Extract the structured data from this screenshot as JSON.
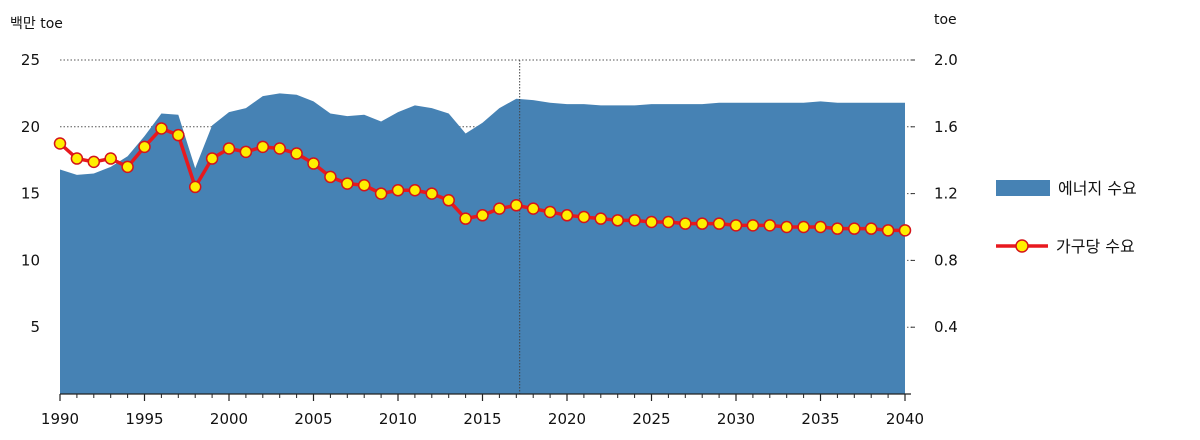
{
  "chart_data": {
    "type": "area+line",
    "title": "",
    "y_left_unit": "백만 toe",
    "y_right_unit": "toe",
    "x_ticks": [
      1990,
      1995,
      2000,
      2005,
      2010,
      2015,
      2020,
      2025,
      2030,
      2035,
      2040
    ],
    "y_left_ticks": [
      5,
      10,
      15,
      20,
      25
    ],
    "y_right_ticks": [
      "0.4",
      "0.8",
      "1.2",
      "1.6",
      "2.0"
    ],
    "x_range": [
      1990,
      2040
    ],
    "y_left_range": [
      0,
      25
    ],
    "y_right_range": [
      0,
      2.0
    ],
    "vertical_marker_year": 2017.2,
    "grid": "dotted horizontal",
    "legend_placement": "right",
    "colors": {
      "area": "#4682b4",
      "line": "#e8191e",
      "marker_fill": "#ffef00",
      "marker_stroke": "#d4141a",
      "grid": "#555555"
    },
    "series": [
      {
        "name": "에너지 수요",
        "type": "area",
        "axis": "left",
        "x": [
          1990,
          1991,
          1992,
          1993,
          1994,
          1995,
          1996,
          1997,
          1998,
          1999,
          2000,
          2001,
          2002,
          2003,
          2004,
          2005,
          2006,
          2007,
          2008,
          2009,
          2010,
          2011,
          2012,
          2013,
          2014,
          2015,
          2016,
          2017,
          2018,
          2019,
          2020,
          2021,
          2022,
          2023,
          2024,
          2025,
          2026,
          2027,
          2028,
          2029,
          2030,
          2031,
          2032,
          2033,
          2034,
          2035,
          2036,
          2037,
          2038,
          2039,
          2040
        ],
        "values": [
          16.8,
          16.4,
          16.5,
          17.0,
          17.8,
          19.3,
          21.0,
          20.9,
          16.9,
          20.1,
          21.1,
          21.4,
          22.3,
          22.5,
          22.4,
          21.9,
          21.0,
          20.8,
          20.9,
          20.4,
          21.1,
          21.6,
          21.4,
          21.0,
          19.5,
          20.3,
          21.4,
          22.1,
          22.0,
          21.8,
          21.7,
          21.7,
          21.6,
          21.6,
          21.6,
          21.7,
          21.7,
          21.7,
          21.7,
          21.8,
          21.8,
          21.8,
          21.8,
          21.8,
          21.8,
          21.9,
          21.8,
          21.8,
          21.8,
          21.8,
          21.8
        ]
      },
      {
        "name": "가구당 수요",
        "type": "line",
        "axis": "right",
        "x": [
          1990,
          1991,
          1992,
          1993,
          1994,
          1995,
          1996,
          1997,
          1998,
          1999,
          2000,
          2001,
          2002,
          2003,
          2004,
          2005,
          2006,
          2007,
          2008,
          2009,
          2010,
          2011,
          2012,
          2013,
          2014,
          2015,
          2016,
          2017,
          2018,
          2019,
          2020,
          2021,
          2022,
          2023,
          2024,
          2025,
          2026,
          2027,
          2028,
          2029,
          2030,
          2031,
          2032,
          2033,
          2034,
          2035,
          2036,
          2037,
          2038,
          2039,
          2040
        ],
        "values": [
          1.5,
          1.41,
          1.39,
          1.41,
          1.36,
          1.48,
          1.59,
          1.55,
          1.24,
          1.41,
          1.47,
          1.45,
          1.48,
          1.47,
          1.44,
          1.38,
          1.3,
          1.26,
          1.25,
          1.2,
          1.22,
          1.22,
          1.2,
          1.16,
          1.05,
          1.07,
          1.11,
          1.13,
          1.11,
          1.09,
          1.07,
          1.06,
          1.05,
          1.04,
          1.04,
          1.03,
          1.03,
          1.02,
          1.02,
          1.02,
          1.01,
          1.01,
          1.01,
          1.0,
          1.0,
          1.0,
          0.99,
          0.99,
          0.99,
          0.98,
          0.98
        ]
      }
    ]
  }
}
